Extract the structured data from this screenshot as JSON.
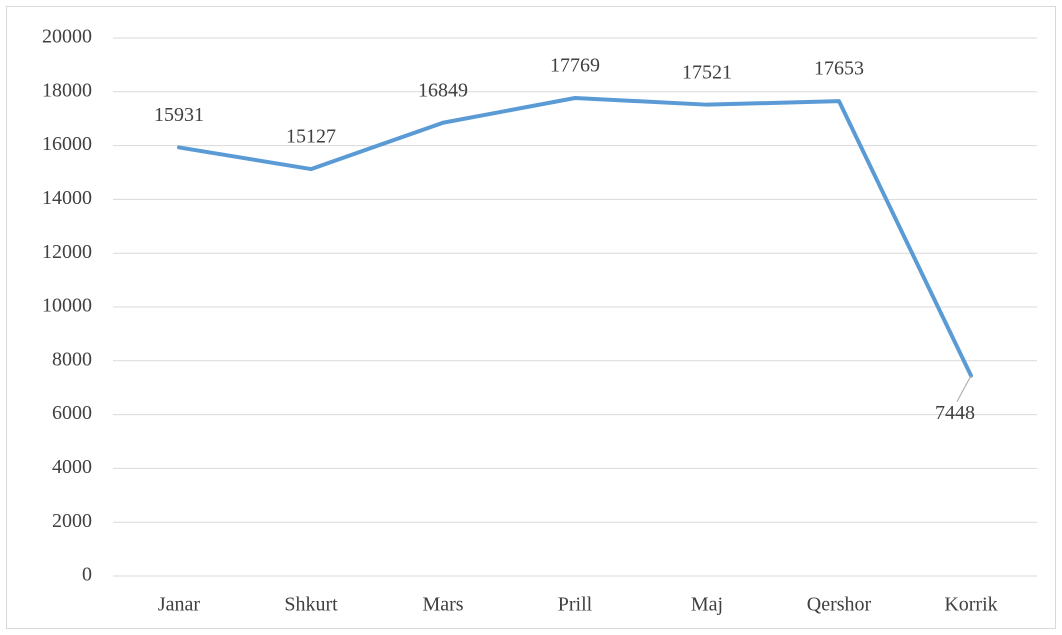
{
  "chart_data": {
    "type": "line",
    "categories": [
      "Janar",
      "Shkurt",
      "Mars",
      "Prill",
      "Maj",
      "Qershor",
      "Korrik"
    ],
    "series": [
      {
        "color": "#5b9bd5",
        "values": [
          15931,
          15127,
          16849,
          17769,
          17521,
          17653,
          7448
        ]
      }
    ],
    "ylim": [
      0,
      20000
    ],
    "yticks": [
      0,
      2000,
      4000,
      6000,
      8000,
      10000,
      12000,
      14000,
      16000,
      18000,
      20000
    ],
    "grid": true
  }
}
